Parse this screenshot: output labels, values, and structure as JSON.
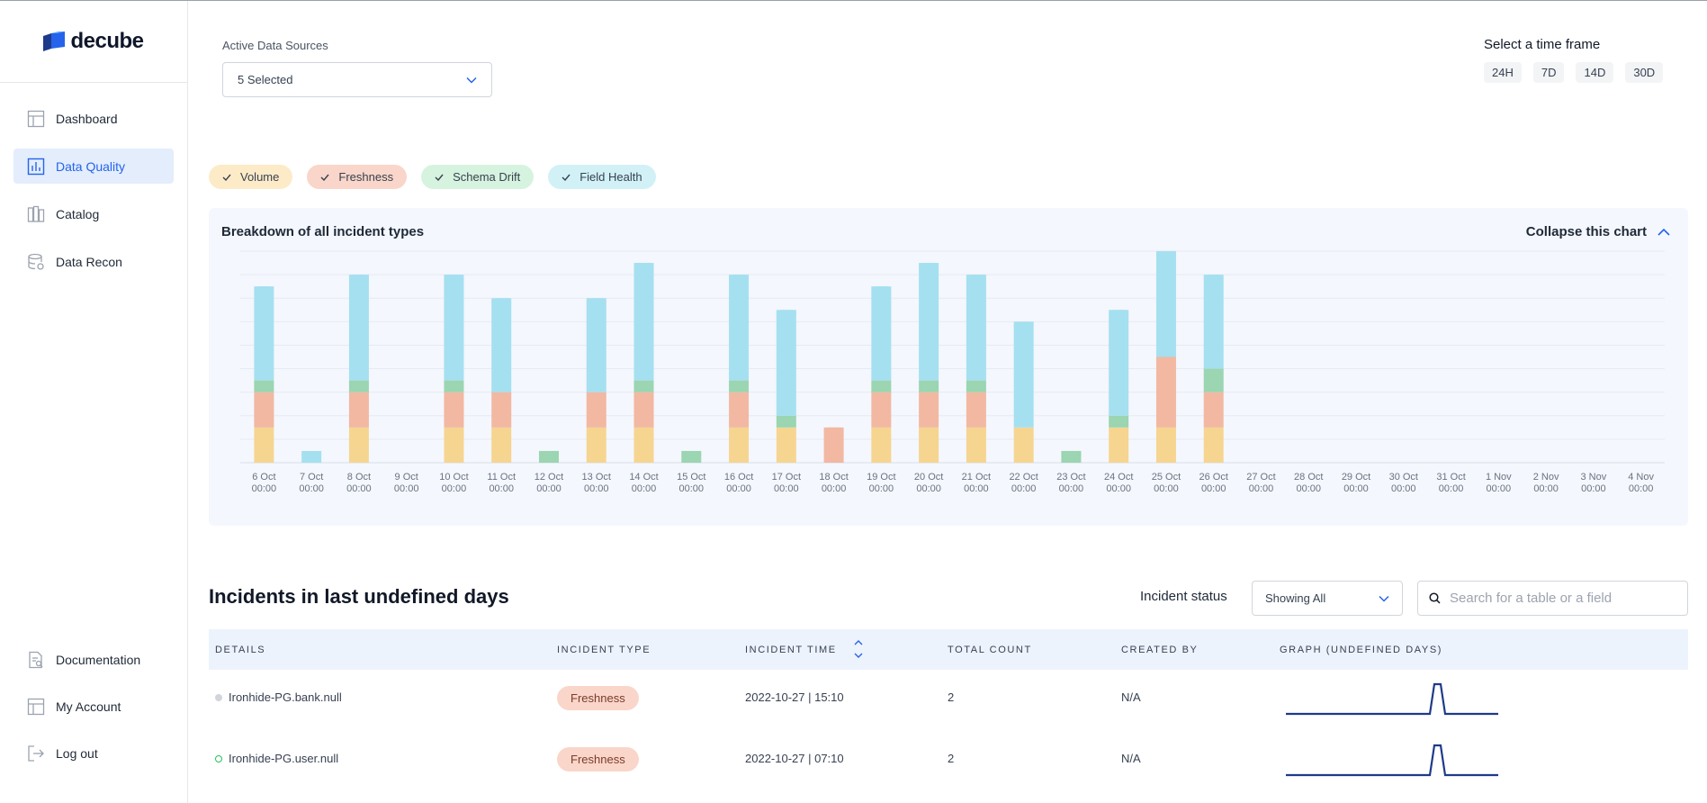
{
  "brand": {
    "name": "decube",
    "primary": "#1e40af",
    "accent": "#2563eb"
  },
  "sidebar": {
    "items": [
      {
        "label": "Dashboard",
        "icon": "dashboard-icon",
        "active": false
      },
      {
        "label": "Data Quality",
        "icon": "bar-chart-icon",
        "active": true
      },
      {
        "label": "Catalog",
        "icon": "catalog-icon",
        "active": false
      },
      {
        "label": "Data Recon",
        "icon": "database-icon",
        "active": false
      }
    ],
    "bottom_items": [
      {
        "label": "Documentation",
        "icon": "document-icon"
      },
      {
        "label": "My Account",
        "icon": "account-icon"
      },
      {
        "label": "Log out",
        "icon": "logout-icon"
      }
    ]
  },
  "data_sources": {
    "label": "Active Data Sources",
    "value": "5 Selected"
  },
  "time_frame": {
    "label": "Select a time frame",
    "options": [
      "24H",
      "7D",
      "14D",
      "30D"
    ]
  },
  "filters": [
    {
      "label": "Volume",
      "bg": "#fdebc8"
    },
    {
      "label": "Freshness",
      "bg": "#f9d6c9"
    },
    {
      "label": "Schema Drift",
      "bg": "#d6f3df"
    },
    {
      "label": "Field Health",
      "bg": "#d2f1f7"
    }
  ],
  "chart": {
    "title": "Breakdown of all incident types",
    "collapse_label": "Collapse this chart"
  },
  "chart_data": {
    "type": "bar",
    "stacked": true,
    "categories": [
      "6 Oct",
      "7 Oct",
      "8 Oct",
      "9 Oct",
      "10 Oct",
      "11 Oct",
      "12 Oct",
      "13 Oct",
      "14 Oct",
      "15 Oct",
      "16 Oct",
      "17 Oct",
      "18 Oct",
      "19 Oct",
      "20 Oct",
      "21 Oct",
      "22 Oct",
      "23 Oct",
      "24 Oct",
      "25 Oct",
      "26 Oct",
      "27 Oct",
      "28 Oct",
      "29 Oct",
      "30 Oct",
      "31 Oct",
      "1 Nov",
      "2 Nov",
      "3 Nov",
      "4 Nov"
    ],
    "time_label": "00:00",
    "series": [
      {
        "name": "Volume",
        "color": "#f6d591",
        "values": [
          3,
          0,
          3,
          0,
          3,
          3,
          0,
          3,
          3,
          0,
          3,
          3,
          0,
          3,
          3,
          3,
          3,
          0,
          3,
          3,
          3,
          0,
          0,
          0,
          0,
          0,
          0,
          0,
          0,
          0
        ]
      },
      {
        "name": "Freshness",
        "color": "#f2b8a2",
        "values": [
          3,
          0,
          3,
          0,
          3,
          3,
          0,
          3,
          3,
          0,
          3,
          0,
          3,
          3,
          3,
          3,
          0,
          0,
          0,
          6,
          3,
          0,
          0,
          0,
          0,
          0,
          0,
          0,
          0,
          0
        ]
      },
      {
        "name": "Schema Drift",
        "color": "#9bd5b1",
        "values": [
          1,
          0,
          1,
          0,
          1,
          0,
          1,
          0,
          1,
          1,
          1,
          1,
          0,
          1,
          1,
          1,
          0,
          1,
          1,
          0,
          2,
          0,
          0,
          0,
          0,
          0,
          0,
          0,
          0,
          0
        ]
      },
      {
        "name": "Field Health",
        "color": "#a5e0f0",
        "values": [
          8,
          1,
          9,
          0,
          9,
          8,
          0,
          8,
          10,
          0,
          9,
          9,
          0,
          8,
          10,
          9,
          9,
          0,
          9,
          9,
          8,
          0,
          0,
          0,
          0,
          0,
          0,
          0,
          0,
          0
        ]
      }
    ],
    "ylim": [
      0,
      18
    ],
    "grid": true
  },
  "incidents": {
    "title": "Incidents in last undefined days",
    "status_label": "Incident status",
    "status_value": "Showing All",
    "search_placeholder": "Search for a table or a field",
    "columns": [
      "DETAILS",
      "INCIDENT TYPE",
      "INCIDENT TIME",
      "TOTAL COUNT",
      "CREATED BY",
      "GRAPH (UNDEFINED DAYS)"
    ],
    "rows": [
      {
        "details": "Ironhide-PG.bank.null",
        "type": "Freshness",
        "time": "2022-10-27 | 15:10",
        "count": "2",
        "created_by": "N/A",
        "dot": "filled-gray"
      },
      {
        "details": "Ironhide-PG.user.null",
        "type": "Freshness",
        "time": "2022-10-27 | 07:10",
        "count": "2",
        "created_by": "N/A",
        "dot": "outline-green"
      }
    ]
  }
}
